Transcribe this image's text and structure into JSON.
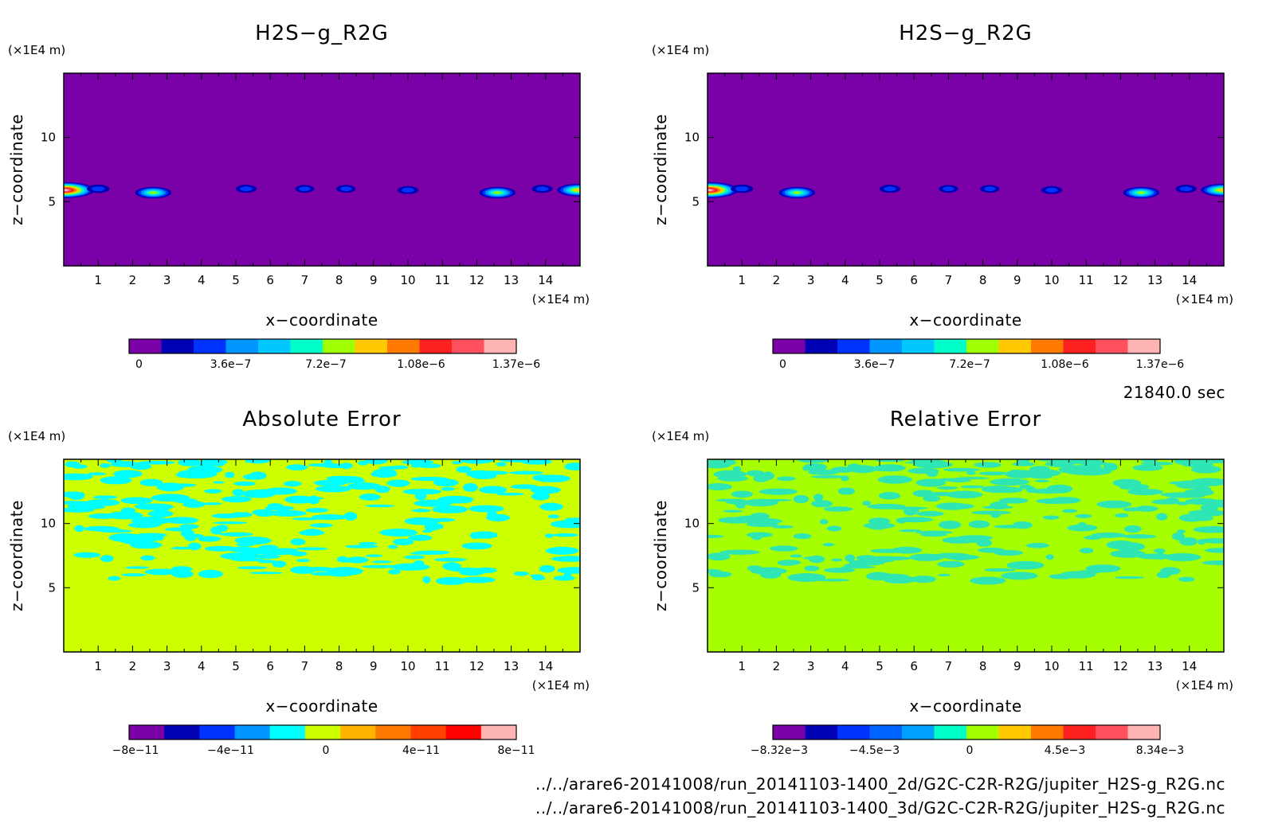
{
  "footer": {
    "time": "21840.0 sec",
    "file1": "../../arare6-20141008/run_20141103-1400_2d/G2C-C2R-R2G/jupiter_H2S-g_R2G.nc",
    "file2": "../../arare6-20141008/run_20141103-1400_3d/G2C-C2R-R2G/jupiter_H2S-g_R2G.nc"
  },
  "chart_data": [
    {
      "type": "heatmap",
      "title": "H2S−g_R2G",
      "xlabel": "x−coordinate",
      "ylabel": "z−coordinate",
      "xunit": "(×1E4 m)",
      "yunit": "(×1E4 m)",
      "xlim": [
        0,
        15
      ],
      "ylim": [
        0,
        15
      ],
      "xticks": [
        1,
        2,
        3,
        4,
        5,
        6,
        7,
        8,
        9,
        10,
        11,
        12,
        13,
        14
      ],
      "yticks": [
        5,
        10
      ],
      "colorbar": {
        "colors": [
          "#7a00a8",
          "#0000b4",
          "#0032ff",
          "#0096ff",
          "#00c8ff",
          "#00ffc8",
          "#a0ff00",
          "#ffc800",
          "#ff7a00",
          "#ff2020",
          "#ff5060",
          "#ffb4b4"
        ],
        "tick_labels": [
          "0",
          "3.6e−7",
          "7.2e−7",
          "1.08e−6",
          "1.37e−6"
        ]
      },
      "features": [
        {
          "x": 0.05,
          "z": 5.9,
          "peak": 1.37e-06
        },
        {
          "x": 1.0,
          "z": 6.0,
          "peak": 3e-07
        },
        {
          "x": 2.6,
          "z": 5.7,
          "peak": 7.2e-07
        },
        {
          "x": 5.3,
          "z": 6.0,
          "peak": 2.5e-07
        },
        {
          "x": 7.0,
          "z": 6.0,
          "peak": 2e-07
        },
        {
          "x": 8.2,
          "z": 6.0,
          "peak": 2e-07
        },
        {
          "x": 10.0,
          "z": 5.9,
          "peak": 2.5e-07
        },
        {
          "x": 12.6,
          "z": 5.7,
          "peak": 7.2e-07
        },
        {
          "x": 13.9,
          "z": 6.0,
          "peak": 2.5e-07
        },
        {
          "x": 14.95,
          "z": 5.9,
          "peak": 9e-07
        }
      ]
    },
    {
      "type": "heatmap",
      "title": "H2S−g_R2G",
      "xlabel": "x−coordinate",
      "ylabel": "z−coordinate",
      "xunit": "(×1E4 m)",
      "yunit": "(×1E4 m)",
      "xlim": [
        0,
        15
      ],
      "ylim": [
        0,
        15
      ],
      "xticks": [
        1,
        2,
        3,
        4,
        5,
        6,
        7,
        8,
        9,
        10,
        11,
        12,
        13,
        14
      ],
      "yticks": [
        5,
        10
      ],
      "colorbar": {
        "colors": [
          "#7a00a8",
          "#0000b4",
          "#0032ff",
          "#0096ff",
          "#00c8ff",
          "#00ffc8",
          "#a0ff00",
          "#ffc800",
          "#ff7a00",
          "#ff2020",
          "#ff5060",
          "#ffb4b4"
        ],
        "tick_labels": [
          "0",
          "3.6e−7",
          "7.2e−7",
          "1.08e−6",
          "1.37e−6"
        ]
      },
      "features": [
        {
          "x": 0.05,
          "z": 5.9,
          "peak": 1.37e-06
        },
        {
          "x": 1.0,
          "z": 6.0,
          "peak": 3e-07
        },
        {
          "x": 2.6,
          "z": 5.7,
          "peak": 7.2e-07
        },
        {
          "x": 5.3,
          "z": 6.0,
          "peak": 2.5e-07
        },
        {
          "x": 7.0,
          "z": 6.0,
          "peak": 2e-07
        },
        {
          "x": 8.2,
          "z": 6.0,
          "peak": 2e-07
        },
        {
          "x": 10.0,
          "z": 5.9,
          "peak": 2.5e-07
        },
        {
          "x": 12.6,
          "z": 5.7,
          "peak": 7.2e-07
        },
        {
          "x": 13.9,
          "z": 6.0,
          "peak": 2.5e-07
        },
        {
          "x": 14.95,
          "z": 5.9,
          "peak": 9e-07
        }
      ]
    },
    {
      "type": "heatmap",
      "title": "Absolute Error",
      "xlabel": "x−coordinate",
      "ylabel": "z−coordinate",
      "xunit": "(×1E4 m)",
      "yunit": "(×1E4 m)",
      "xlim": [
        0,
        15
      ],
      "ylim": [
        0,
        15
      ],
      "xticks": [
        1,
        2,
        3,
        4,
        5,
        6,
        7,
        8,
        9,
        10,
        11,
        12,
        13,
        14
      ],
      "yticks": [
        5,
        10
      ],
      "background_color": "#ccff00",
      "noise_color": "#00ffff",
      "noise_zmin": 5.5,
      "colorbar": {
        "colors": [
          "#7a00a8",
          "#0000b4",
          "#0032ff",
          "#0096ff",
          "#00ffff",
          "#ccff00",
          "#ffb400",
          "#ff7a00",
          "#ff4000",
          "#ff0000",
          "#ffb4b4"
        ],
        "tick_labels": [
          "−8e−11",
          "−4e−11",
          "0",
          "4e−11",
          "8e−11"
        ]
      }
    },
    {
      "type": "heatmap",
      "title": "Relative Error",
      "xlabel": "x−coordinate",
      "ylabel": "z−coordinate",
      "xunit": "(×1E4 m)",
      "yunit": "(×1E4 m)",
      "xlim": [
        0,
        15
      ],
      "ylim": [
        0,
        15
      ],
      "xticks": [
        1,
        2,
        3,
        4,
        5,
        6,
        7,
        8,
        9,
        10,
        11,
        12,
        13,
        14
      ],
      "yticks": [
        5,
        10
      ],
      "background_color": "#a6ff00",
      "noise_color": "#2ee6b4",
      "noise_zmin": 5.5,
      "colorbar": {
        "colors": [
          "#7a00a8",
          "#0000b4",
          "#0032ff",
          "#0064ff",
          "#00a0ff",
          "#00ffc8",
          "#a6ff00",
          "#ffc800",
          "#ff7a00",
          "#ff2020",
          "#ff5060",
          "#ffb4b4"
        ],
        "tick_labels": [
          "−8.32e−3",
          "−4.5e−3",
          "0",
          "4.5e−3",
          "8.34e−3"
        ]
      }
    }
  ]
}
